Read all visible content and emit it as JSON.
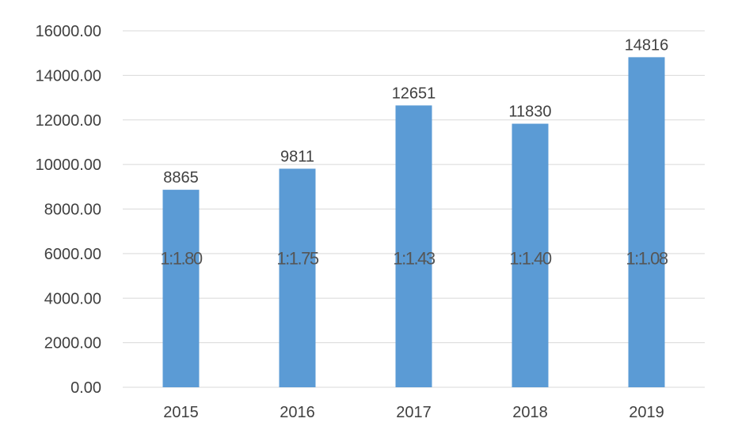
{
  "chart_data": {
    "type": "bar",
    "title": "",
    "xlabel": "",
    "ylabel": "",
    "categories": [
      "2015",
      "2016",
      "2017",
      "2018",
      "2019"
    ],
    "values": [
      8865,
      9811,
      12651,
      11830,
      14816
    ],
    "value_labels": [
      "8865",
      "9811",
      "12651",
      "11830",
      "14816"
    ],
    "ratio_labels": [
      "1:1.80",
      "1:1.75",
      "1:1.43",
      "1:1.40",
      "1:1.08"
    ],
    "ylim": [
      0,
      16000
    ],
    "yticks": [
      0,
      2000,
      4000,
      6000,
      8000,
      10000,
      12000,
      14000,
      16000
    ],
    "ytick_labels": [
      "0.00",
      "2000.00",
      "4000.00",
      "6000.00",
      "8000.00",
      "10000.00",
      "12000.00",
      "14000.00",
      "16000.00"
    ],
    "ratio_label_level": 5800,
    "grid": true,
    "legend": "none",
    "bar_color": "#5b9bd5",
    "grid_color": "#d9d9d9",
    "text_color": "#404040"
  }
}
